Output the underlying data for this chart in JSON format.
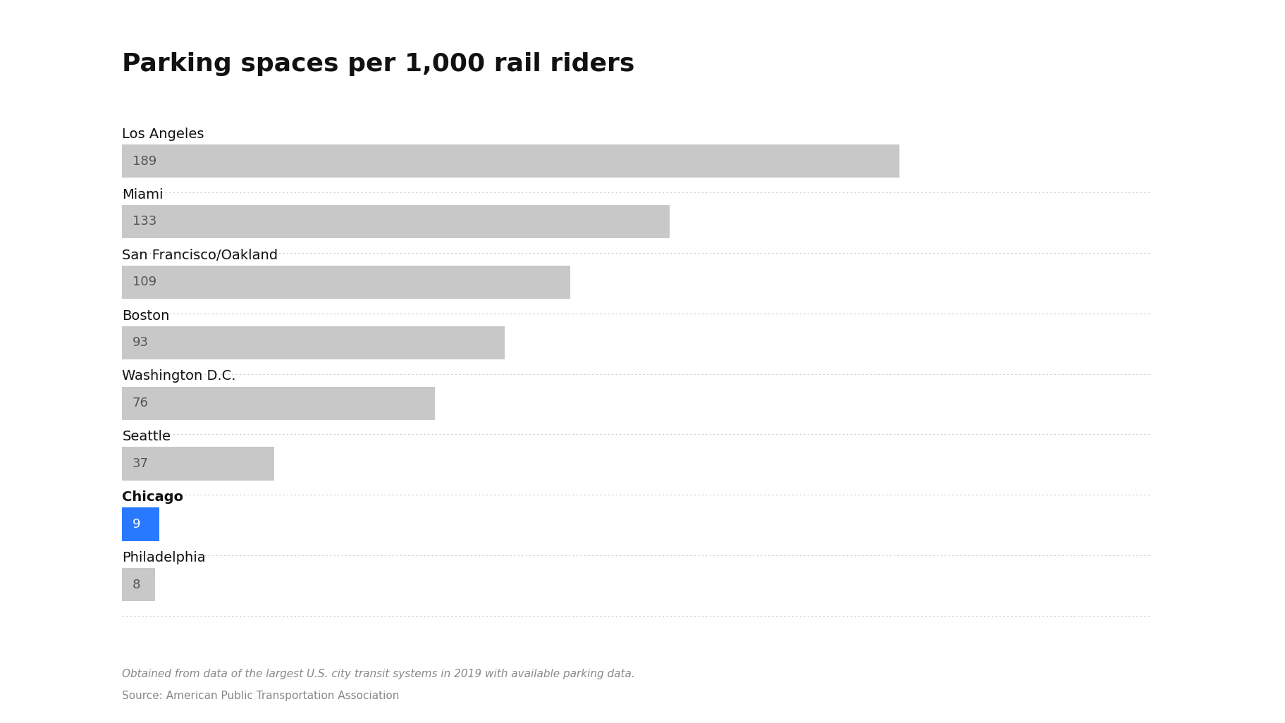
{
  "title": "Parking spaces per 1,000 rail riders",
  "categories": [
    "Los Angeles",
    "Miami",
    "San Francisco/Oakland",
    "Boston",
    "Washington D.C.",
    "Seattle",
    "Chicago",
    "Philadelphia"
  ],
  "values": [
    189,
    133,
    109,
    93,
    76,
    37,
    9,
    8
  ],
  "highlight_city": "Chicago",
  "highlight_color": "#2979FF",
  "default_color": "#C8C8C8",
  "bar_text_color": "#555555",
  "highlight_text_color": "#ffffff",
  "background_color": "#ffffff",
  "title_color": "#111111",
  "label_color": "#111111",
  "separator_color": "#cccccc",
  "footnote_italic": "Obtained from data of the largest U.S. city transit systems in 2019 with available parking data.",
  "footnote_source": "Source: American Public Transportation Association",
  "footnote_color": "#888888",
  "bar_height": 0.55,
  "max_value": 250,
  "fig_width": 18.24,
  "fig_height": 10.26
}
